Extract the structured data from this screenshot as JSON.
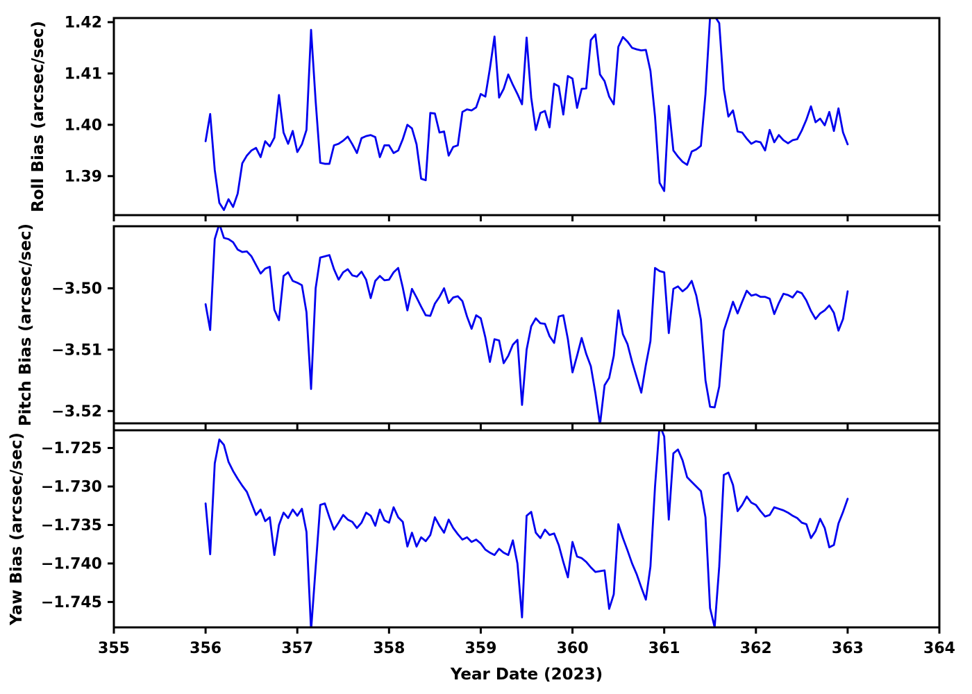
{
  "figure": {
    "background": "#ffffff",
    "frame_color": "#000000",
    "line_color": "#0000ee"
  },
  "chart_data": {
    "type": "line",
    "title": "",
    "xlabel": "Year Date (2023)",
    "xlim": [
      355,
      364
    ],
    "xticks": [
      355,
      356,
      357,
      358,
      359,
      360,
      361,
      362,
      363,
      364
    ],
    "x_start": 356.0,
    "x_step": 0.05,
    "n_points": 141,
    "line_color": "#0000ee",
    "grid": false,
    "legend": "none",
    "subplots": [
      {
        "name": "roll",
        "ylabel": "Roll Bias (arcsec/sec)",
        "ylim": [
          1.3824,
          1.4208
        ],
        "yticks": [
          1.39,
          1.4,
          1.41,
          1.42
        ],
        "ytick_labels": [
          "1.39",
          "1.40",
          "1.41",
          "1.42"
        ],
        "values": [
          1.3968,
          1.4021,
          1.3912,
          1.3848,
          1.3834,
          1.3855,
          1.384,
          1.3866,
          1.3925,
          1.394,
          1.395,
          1.3955,
          1.3937,
          1.3968,
          1.3958,
          1.3975,
          1.4058,
          1.3985,
          1.3963,
          1.3988,
          1.3947,
          1.3962,
          1.399,
          1.4185,
          1.4046,
          1.3926,
          1.3924,
          1.3924,
          1.396,
          1.3963,
          1.3969,
          1.3977,
          1.3962,
          1.3945,
          1.3974,
          1.3978,
          1.398,
          1.3976,
          1.3937,
          1.396,
          1.396,
          1.3945,
          1.395,
          1.3972,
          1.4,
          1.3993,
          1.3962,
          1.3895,
          1.3892,
          1.4023,
          1.4022,
          1.3985,
          1.3987,
          1.394,
          1.3957,
          1.396,
          1.4025,
          1.403,
          1.4028,
          1.4034,
          1.406,
          1.4055,
          1.411,
          1.4172,
          1.4053,
          1.407,
          1.4098,
          1.4078,
          1.406,
          1.404,
          1.417,
          1.4053,
          1.399,
          1.4023,
          1.4027,
          1.3995,
          1.408,
          1.4075,
          1.402,
          1.4095,
          1.409,
          1.4033,
          1.407,
          1.4071,
          1.4165,
          1.4176,
          1.4098,
          1.4085,
          1.4055,
          1.404,
          1.4152,
          1.4171,
          1.4162,
          1.415,
          1.4147,
          1.4145,
          1.4146,
          1.4105,
          1.4016,
          1.3887,
          1.3871,
          1.4037,
          1.395,
          1.3938,
          1.3928,
          1.3922,
          1.3948,
          1.3952,
          1.3959,
          1.406,
          1.421,
          1.4212,
          1.4198,
          1.407,
          1.4016,
          1.4028,
          1.3987,
          1.3985,
          1.3973,
          1.3963,
          1.3968,
          1.3966,
          1.395,
          1.399,
          1.3966,
          1.398,
          1.397,
          1.3964,
          1.397,
          1.3972,
          1.3989,
          1.401,
          1.4036,
          1.4005,
          1.4012,
          1.3999,
          1.4025,
          1.3988,
          1.4032,
          1.3985,
          1.3962
        ]
      },
      {
        "name": "pitch",
        "ylabel": "Pitch Bias (arcsec/sec)",
        "ylim": [
          -3.522,
          -3.4899
        ],
        "yticks": [
          -3.52,
          -3.51,
          -3.5
        ],
        "ytick_labels": [
          "−3.52",
          "−3.51",
          "−3.50"
        ],
        "values": [
          -3.5026,
          -3.5068,
          -3.492,
          -3.4895,
          -3.4918,
          -3.492,
          -3.4925,
          -3.4937,
          -3.4941,
          -3.494,
          -3.4948,
          -3.4962,
          -3.4976,
          -3.4968,
          -3.4965,
          -3.5035,
          -3.5052,
          -3.498,
          -3.4974,
          -3.4988,
          -3.4991,
          -3.4995,
          -3.5039,
          -3.5164,
          -3.5,
          -3.495,
          -3.4948,
          -3.4946,
          -3.4969,
          -3.4986,
          -3.4974,
          -3.4969,
          -3.4979,
          -3.4981,
          -3.4973,
          -3.4986,
          -3.5016,
          -3.4988,
          -3.498,
          -3.4987,
          -3.4986,
          -3.4974,
          -3.4967,
          -3.4999,
          -3.5036,
          -3.5001,
          -3.5015,
          -3.503,
          -3.5044,
          -3.5045,
          -3.5025,
          -3.5014,
          -3.5,
          -3.5024,
          -3.5015,
          -3.5013,
          -3.5021,
          -3.5046,
          -3.5066,
          -3.5044,
          -3.5049,
          -3.508,
          -3.512,
          -3.5083,
          -3.5085,
          -3.5122,
          -3.511,
          -3.5092,
          -3.5084,
          -3.519,
          -3.51,
          -3.5062,
          -3.5049,
          -3.5057,
          -3.5058,
          -3.5078,
          -3.5089,
          -3.5046,
          -3.5044,
          -3.5083,
          -3.5137,
          -3.511,
          -3.5081,
          -3.5107,
          -3.5127,
          -3.5171,
          -3.5222,
          -3.5158,
          -3.5146,
          -3.511,
          -3.5036,
          -3.5075,
          -3.5091,
          -3.512,
          -3.5145,
          -3.517,
          -3.5125,
          -3.5086,
          -3.4967,
          -3.4972,
          -3.4974,
          -3.5073,
          -3.5001,
          -3.4997,
          -3.5005,
          -3.4999,
          -3.4988,
          -3.5012,
          -3.5051,
          -3.515,
          -3.5193,
          -3.5194,
          -3.516,
          -3.5069,
          -3.5046,
          -3.5022,
          -3.5041,
          -3.5022,
          -3.5004,
          -3.5012,
          -3.501,
          -3.5014,
          -3.5014,
          -3.5017,
          -3.5042,
          -3.5024,
          -3.5009,
          -3.5011,
          -3.5015,
          -3.5005,
          -3.5008,
          -3.502,
          -3.5037,
          -3.505,
          -3.5041,
          -3.5036,
          -3.5028,
          -3.504,
          -3.5069,
          -3.505,
          -3.5005
        ]
      },
      {
        "name": "yaw",
        "ylabel": "Yaw Bias (arcsec/sec)",
        "ylim": [
          -1.7483,
          -1.7227
        ],
        "yticks": [
          -1.745,
          -1.74,
          -1.735,
          -1.73,
          -1.725
        ],
        "ytick_labels": [
          "−1.745",
          "−1.740",
          "−1.735",
          "−1.730",
          "−1.725"
        ],
        "values": [
          -1.7322,
          -1.7388,
          -1.727,
          -1.7239,
          -1.7246,
          -1.7268,
          -1.728,
          -1.729,
          -1.7299,
          -1.7307,
          -1.7322,
          -1.7337,
          -1.733,
          -1.7345,
          -1.734,
          -1.7389,
          -1.735,
          -1.7334,
          -1.7341,
          -1.733,
          -1.7338,
          -1.7329,
          -1.7359,
          -1.7487,
          -1.7405,
          -1.7324,
          -1.7322,
          -1.734,
          -1.7356,
          -1.7347,
          -1.7337,
          -1.7343,
          -1.7346,
          -1.7354,
          -1.7347,
          -1.7334,
          -1.7338,
          -1.7351,
          -1.733,
          -1.7344,
          -1.7347,
          -1.7327,
          -1.734,
          -1.7346,
          -1.7378,
          -1.736,
          -1.7378,
          -1.7366,
          -1.7371,
          -1.7363,
          -1.734,
          -1.7351,
          -1.736,
          -1.7343,
          -1.7354,
          -1.7362,
          -1.7369,
          -1.7366,
          -1.7372,
          -1.7369,
          -1.7374,
          -1.7382,
          -1.7386,
          -1.7389,
          -1.7381,
          -1.7386,
          -1.7389,
          -1.737,
          -1.74,
          -1.747,
          -1.7338,
          -1.7333,
          -1.736,
          -1.7367,
          -1.7356,
          -1.7363,
          -1.7361,
          -1.7376,
          -1.7398,
          -1.7418,
          -1.7372,
          -1.7391,
          -1.7393,
          -1.7398,
          -1.7405,
          -1.7411,
          -1.741,
          -1.7409,
          -1.7459,
          -1.744,
          -1.7349,
          -1.7367,
          -1.7383,
          -1.74,
          -1.7414,
          -1.7431,
          -1.7447,
          -1.7404,
          -1.73,
          -1.722,
          -1.7235,
          -1.7343,
          -1.7257,
          -1.7252,
          -1.7266,
          -1.7288,
          -1.7294,
          -1.73,
          -1.7306,
          -1.734,
          -1.7458,
          -1.7483,
          -1.7404,
          -1.7285,
          -1.7282,
          -1.7298,
          -1.7332,
          -1.7324,
          -1.7313,
          -1.7321,
          -1.7324,
          -1.7332,
          -1.7339,
          -1.7337,
          -1.7327,
          -1.7329,
          -1.7331,
          -1.7334,
          -1.7338,
          -1.7341,
          -1.7347,
          -1.7349,
          -1.7367,
          -1.7358,
          -1.7342,
          -1.7354,
          -1.7379,
          -1.7376,
          -1.7348,
          -1.7333,
          -1.7316
        ]
      }
    ]
  }
}
